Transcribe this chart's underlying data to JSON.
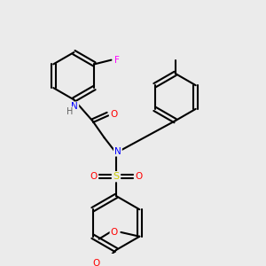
{
  "bg_color": "#ebebeb",
  "bond_color": "#000000",
  "bond_width": 1.5,
  "atom_colors": {
    "N": "#0000ff",
    "O": "#ff0000",
    "F": "#ff00ff",
    "S": "#cccc00",
    "C": "#000000",
    "H": "#808080"
  }
}
